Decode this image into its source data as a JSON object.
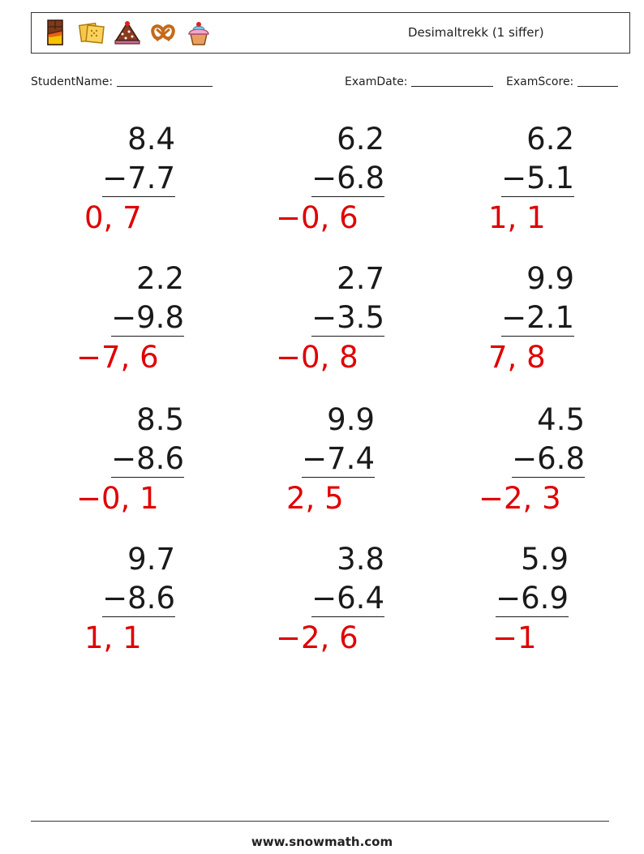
{
  "header": {
    "title": "Desimaltrekk (1 siffer)",
    "icons": [
      "chocolate-bar-icon",
      "cracker-icon",
      "cake-icon",
      "pretzel-icon",
      "cupcake-icon"
    ]
  },
  "meta": {
    "student_label": "StudentName:",
    "date_label": "ExamDate:",
    "score_label": "ExamScore:"
  },
  "problems": [
    {
      "top": "8.4",
      "bottom": "−7.7",
      "answer": "0, 7"
    },
    {
      "top": "6.2",
      "bottom": "−6.8",
      "answer": "−0, 6"
    },
    {
      "top": "6.2",
      "bottom": "−5.1",
      "answer": "1, 1"
    },
    {
      "top": "2.2",
      "bottom": "−9.8",
      "answer": "−7, 6"
    },
    {
      "top": "2.7",
      "bottom": "−3.5",
      "answer": "−0, 8"
    },
    {
      "top": "9.9",
      "bottom": "−2.1",
      "answer": "7, 8"
    },
    {
      "top": "8.5",
      "bottom": "−8.6",
      "answer": "−0, 1"
    },
    {
      "top": "9.9",
      "bottom": "−7.4",
      "answer": "2, 5"
    },
    {
      "top": "4.5",
      "bottom": "−6.8",
      "answer": "−2, 3"
    },
    {
      "top": "9.7",
      "bottom": "−8.6",
      "answer": "1, 1"
    },
    {
      "top": "3.8",
      "bottom": "−6.4",
      "answer": "−2, 6"
    },
    {
      "top": "5.9",
      "bottom": "−6.9",
      "answer": "−1"
    }
  ],
  "footer": {
    "site": "www.snowmath.com"
  },
  "colors": {
    "answer": "#e00000",
    "text": "#1a1a1a"
  }
}
